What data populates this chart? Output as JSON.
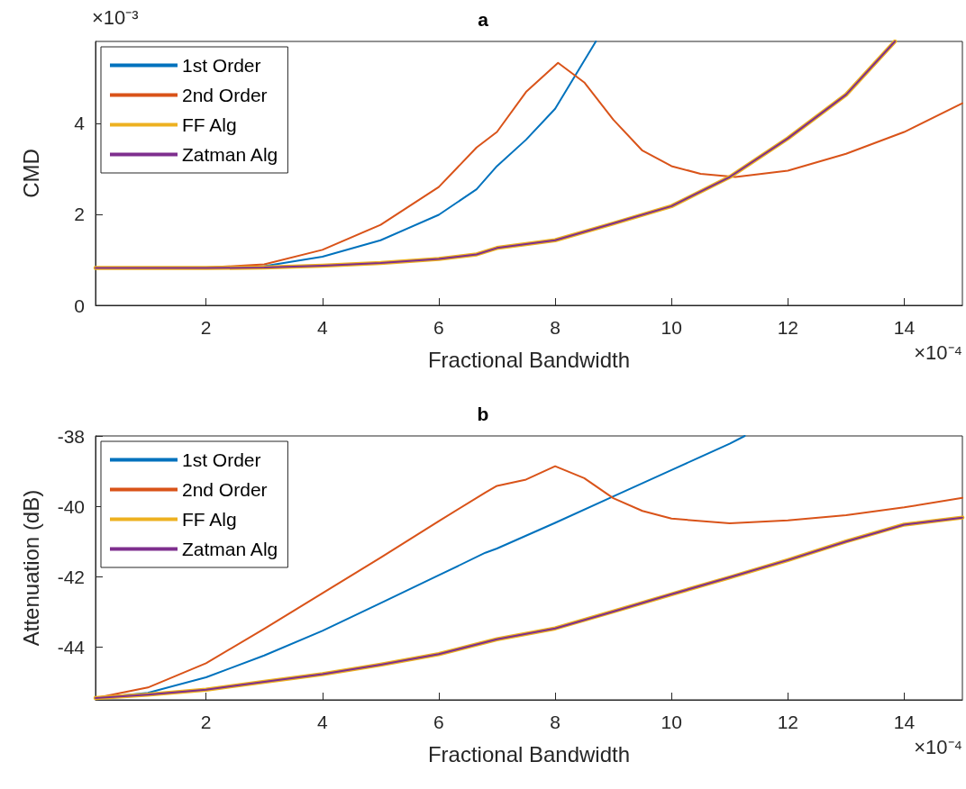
{
  "chart_data": [
    {
      "type": "line",
      "title": "a",
      "xlabel": "Fractional Bandwidth",
      "ylabel": "CMD",
      "xlim": [
        0.1,
        15
      ],
      "xticks": [
        2,
        4,
        6,
        8,
        10,
        12,
        14
      ],
      "ylim": [
        0,
        5.8
      ],
      "yticks": [
        0,
        2,
        4
      ],
      "legend": "top left",
      "annotations": [
        "×10⁻³",
        "×10⁻⁴"
      ],
      "series": [
        {
          "name": "1st Order",
          "color": "#0072bd",
          "x": [
            0.1,
            2,
            3,
            4,
            5,
            6,
            6.65,
            7,
            7.5,
            8,
            8.7
          ],
          "values": [
            0.82,
            0.82,
            0.86,
            1.07,
            1.43,
            1.99,
            2.55,
            3.06,
            3.64,
            4.32,
            5.8
          ]
        },
        {
          "name": "2nd Order",
          "color": "#d95319",
          "x": [
            0.1,
            2,
            3,
            4,
            5,
            6,
            6.65,
            7,
            7.5,
            8.05,
            8.5,
            9,
            9.5,
            10,
            10.5,
            11.1,
            12,
            13,
            14,
            15
          ],
          "values": [
            0.82,
            0.83,
            0.9,
            1.22,
            1.77,
            2.6,
            3.47,
            3.81,
            4.69,
            5.33,
            4.9,
            4.08,
            3.4,
            3.06,
            2.89,
            2.82,
            2.96,
            3.33,
            3.81,
            4.44
          ]
        },
        {
          "name": "FF Alg",
          "color": "#edb120",
          "x": [
            0.1,
            2,
            3,
            4,
            5,
            6,
            6.65,
            7,
            8,
            9,
            10,
            11,
            12,
            13,
            13.84
          ],
          "values": [
            0.82,
            0.82,
            0.83,
            0.87,
            0.93,
            1.02,
            1.12,
            1.26,
            1.43,
            1.8,
            2.18,
            2.82,
            3.67,
            4.63,
            5.8
          ]
        },
        {
          "name": "Zatman Alg",
          "color": "#7e2f8e",
          "x": [
            0.1,
            2,
            3,
            4,
            5,
            6,
            6.65,
            7,
            8,
            9,
            10,
            11,
            12,
            13,
            13.84
          ],
          "values": [
            0.82,
            0.82,
            0.83,
            0.87,
            0.93,
            1.02,
            1.12,
            1.26,
            1.43,
            1.8,
            2.18,
            2.82,
            3.67,
            4.63,
            5.8
          ]
        }
      ]
    },
    {
      "type": "line",
      "title": "b",
      "xlabel": "Fractional Bandwidth",
      "ylabel": "Attenuation (dB)",
      "xlim": [
        0.1,
        15
      ],
      "xticks": [
        2,
        4,
        6,
        8,
        10,
        12,
        14
      ],
      "ylim": [
        -45.5,
        -38
      ],
      "yticks": [
        -44,
        -42,
        -40,
        -38
      ],
      "legend": "top left",
      "annotations": [
        "×10⁻⁴"
      ],
      "series": [
        {
          "name": "1st Order",
          "color": "#0072bd",
          "x": [
            0.1,
            1,
            2,
            3,
            4,
            5,
            6,
            6.8,
            7,
            8,
            9,
            10,
            11,
            11.26
          ],
          "values": [
            -45.45,
            -45.3,
            -44.86,
            -44.24,
            -43.54,
            -42.75,
            -41.96,
            -41.32,
            -41.2,
            -40.47,
            -39.72,
            -38.97,
            -38.22,
            -38
          ]
        },
        {
          "name": "2nd Order",
          "color": "#d95319",
          "x": [
            0.1,
            1,
            2,
            3,
            4,
            5,
            6,
            6.8,
            7,
            7.5,
            8,
            8.5,
            9,
            9.5,
            10,
            11,
            12,
            13,
            14,
            15
          ],
          "values": [
            -45.45,
            -45.15,
            -44.46,
            -43.48,
            -42.47,
            -41.46,
            -40.42,
            -39.61,
            -39.42,
            -39.24,
            -38.86,
            -39.2,
            -39.77,
            -40.13,
            -40.35,
            -40.48,
            -40.4,
            -40.25,
            -40.03,
            -39.76
          ]
        },
        {
          "name": "FF Alg",
          "color": "#edb120",
          "x": [
            0.1,
            1,
            2,
            3,
            4,
            5,
            6,
            7,
            8,
            9,
            10,
            11,
            12,
            13,
            14,
            15
          ],
          "values": [
            -45.45,
            -45.35,
            -45.21,
            -44.99,
            -44.77,
            -44.5,
            -44.2,
            -43.78,
            -43.47,
            -42.99,
            -42.5,
            -42.02,
            -41.53,
            -41.0,
            -40.52,
            -40.32
          ]
        },
        {
          "name": "Zatman Alg",
          "color": "#7e2f8e",
          "x": [
            0.1,
            1,
            2,
            3,
            4,
            5,
            6,
            7,
            8,
            9,
            10,
            11,
            12,
            13,
            14,
            15
          ],
          "values": [
            -45.45,
            -45.35,
            -45.21,
            -44.99,
            -44.77,
            -44.5,
            -44.2,
            -43.78,
            -43.47,
            -42.99,
            -42.5,
            -42.02,
            -41.53,
            -41.0,
            -40.52,
            -40.32
          ]
        }
      ]
    }
  ]
}
